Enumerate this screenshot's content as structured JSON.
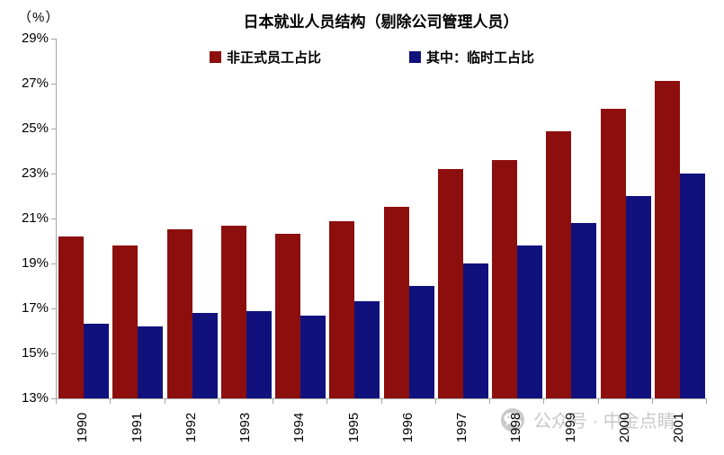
{
  "title": "日本就业人员结构（剔除公司管理人员）",
  "unit_label": "（%）",
  "legend": [
    {
      "label": "非正式员工占比",
      "color": "#8C0F0D"
    },
    {
      "label": "其中：临时工占比",
      "color": "#11117E"
    }
  ],
  "watermark": {
    "text": "公众号 · 中金点睛"
  },
  "colors": {
    "series_red": "#8C0F0D",
    "series_blue": "#11117E",
    "axis": "#a6a6a6",
    "watermark_gray": "#c9c9c9"
  },
  "chart_data": {
    "type": "bar",
    "title": "日本就业人员结构（剔除公司管理人员）",
    "categories": [
      "1990",
      "1991",
      "1992",
      "1993",
      "1994",
      "1995",
      "1996",
      "1997",
      "1998",
      "1999",
      "2000",
      "2001"
    ],
    "series": [
      {
        "name": "非正式员工占比",
        "color": "#8C0F0D",
        "values": [
          20.2,
          19.8,
          20.5,
          20.7,
          20.3,
          20.9,
          21.5,
          23.2,
          23.6,
          24.9,
          25.9,
          27.1
        ]
      },
      {
        "name": "其中：临时工占比",
        "color": "#11117E",
        "values": [
          16.3,
          16.2,
          16.8,
          16.9,
          16.7,
          17.3,
          18.0,
          19.0,
          19.8,
          20.8,
          22.0,
          23.0
        ]
      }
    ],
    "xlabel": "",
    "ylabel": "（%）",
    "ylim": [
      13,
      29
    ],
    "y_tick_step": 2,
    "y_tick_labels": [
      "13%",
      "15%",
      "17%",
      "19%",
      "21%",
      "23%",
      "25%",
      "27%",
      "29%"
    ],
    "grid": false,
    "legend_position": "top-center"
  }
}
